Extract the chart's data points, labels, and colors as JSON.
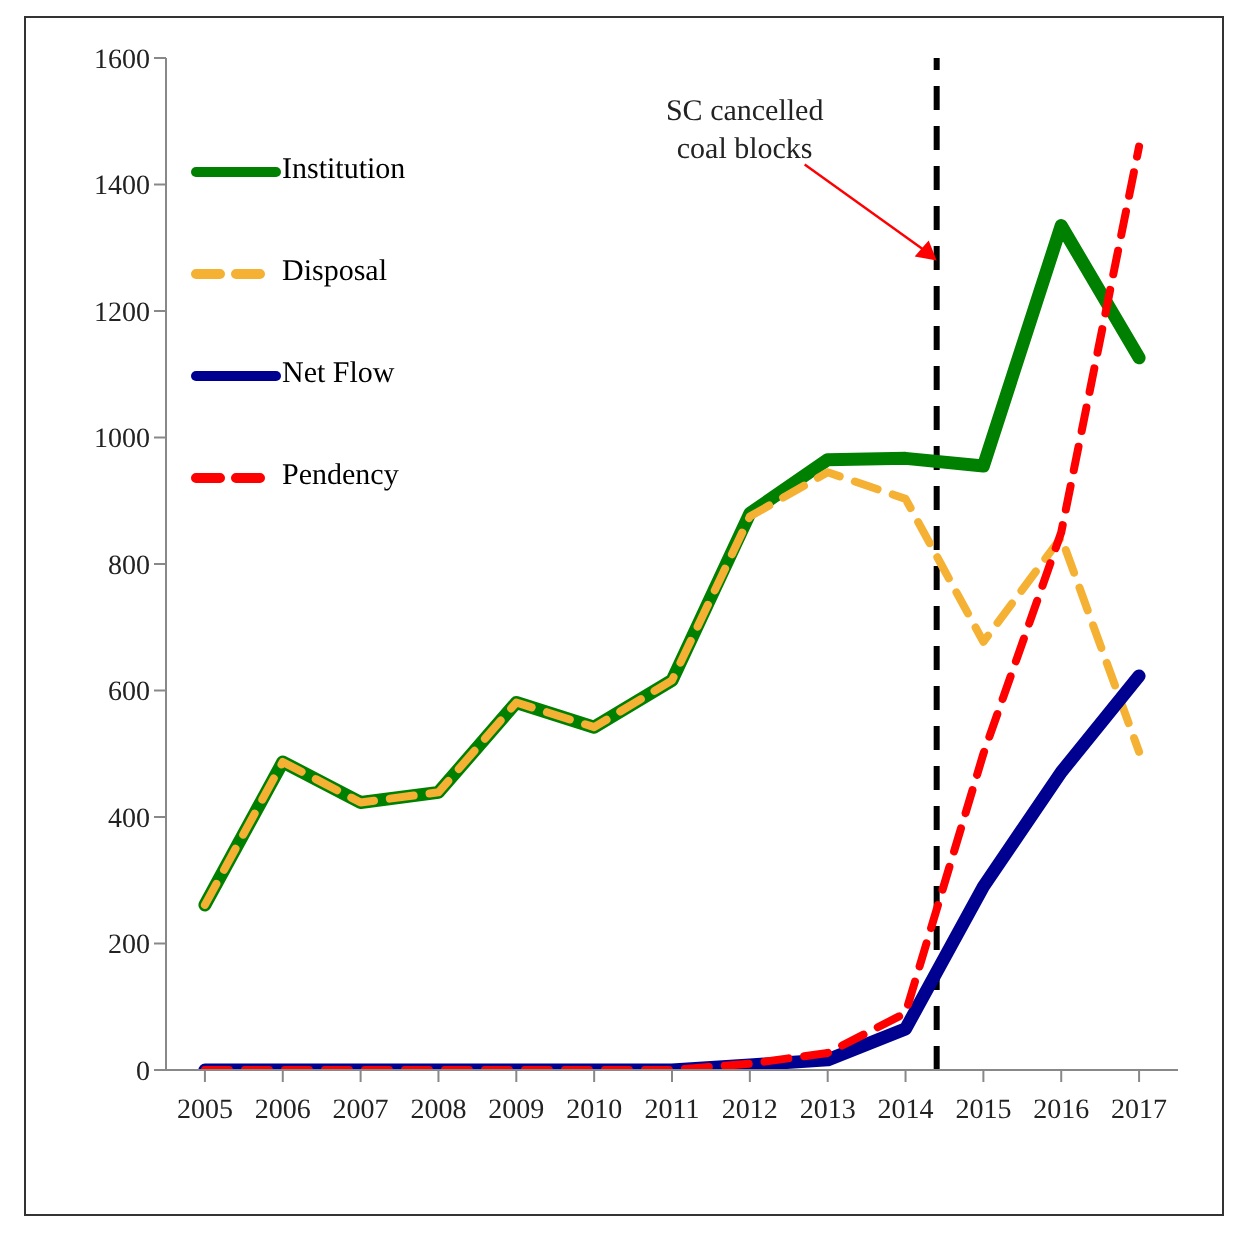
{
  "chart_data": {
    "type": "line",
    "x": [
      2005,
      2006,
      2007,
      2008,
      2009,
      2010,
      2011,
      2012,
      2013,
      2014,
      2015,
      2016,
      2017
    ],
    "xlim": [
      2004.5,
      2017.5
    ],
    "xticks": [
      2005,
      2006,
      2007,
      2008,
      2009,
      2010,
      2011,
      2012,
      2013,
      2014,
      2015,
      2016,
      2017
    ],
    "ylim": [
      0,
      1600
    ],
    "yticks": [
      0,
      200,
      400,
      600,
      800,
      1000,
      1200,
      1400,
      1600
    ],
    "series": [
      {
        "name": "Institution",
        "color": "#008000",
        "line_style": "solid",
        "values": [
          261,
          487,
          423,
          439,
          581,
          542,
          616,
          880,
          965,
          967,
          955,
          1335,
          1126
        ]
      },
      {
        "name": "Disposal",
        "color": "#f5b134",
        "line_style": "dashed",
        "values": [
          261,
          487,
          423,
          439,
          581,
          542,
          616,
          875,
          945,
          903,
          677,
          842,
          503
        ]
      },
      {
        "name": "Net Flow",
        "color": "#000090",
        "line_style": "solid",
        "values": [
          0,
          0,
          0,
          0,
          0,
          0,
          0,
          8,
          16,
          65,
          290,
          471,
          623
        ]
      },
      {
        "name": "Pendency",
        "color": "#ff0000",
        "line_style": "dashed",
        "values": [
          0,
          0,
          0,
          0,
          0,
          0,
          0,
          10,
          27,
          90,
          500,
          850,
          1460
        ]
      }
    ],
    "ref_lines": [
      {
        "axis": "x",
        "value": 2014.4,
        "color": "#000000",
        "line_style": "dashed"
      }
    ],
    "annotations": [
      "SC cancelled\ncoal blocks"
    ],
    "legend": "top left",
    "grid": false,
    "marker": "none"
  }
}
